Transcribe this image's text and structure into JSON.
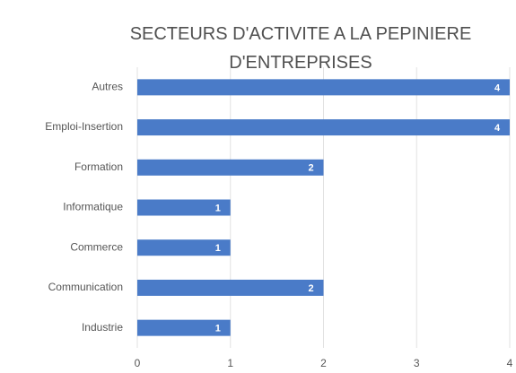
{
  "chart_data": {
    "type": "hbar",
    "title": "SECTEURS D'ACTIVITE A LA PEPINIERE D'ENTREPRISES",
    "categories": [
      "Autres",
      "Emploi-Insertion",
      "Formation",
      "Informatique",
      "Commerce",
      "Communication",
      "Industrie"
    ],
    "values": [
      4,
      4,
      2,
      1,
      1,
      2,
      1
    ],
    "color": "#4a7bc8",
    "xlim": [
      0,
      4
    ],
    "xticks": [
      0,
      1,
      2,
      3,
      4
    ],
    "grid": true
  }
}
